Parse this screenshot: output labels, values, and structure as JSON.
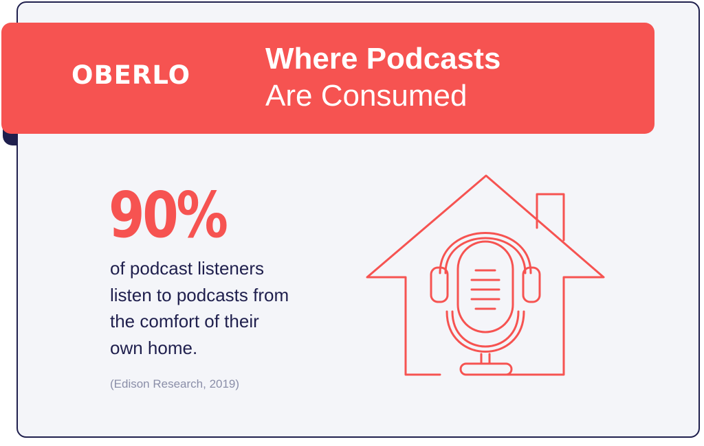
{
  "brand": {
    "logo_text": "OBERLO"
  },
  "header": {
    "title_line1": "Where Podcasts",
    "title_line2": "Are Consumed"
  },
  "stat": {
    "value": "90%",
    "description": "of podcast listeners\nlisten to podcasts from\nthe comfort of their\nown home.",
    "source": "(Edison Research, 2019)"
  },
  "illustration": {
    "icon": "house-microphone-icon"
  },
  "colors": {
    "accent": "#f65351",
    "text_dark": "#1f1f4d",
    "background": "#f4f5f9",
    "muted": "#8a8ea8"
  }
}
